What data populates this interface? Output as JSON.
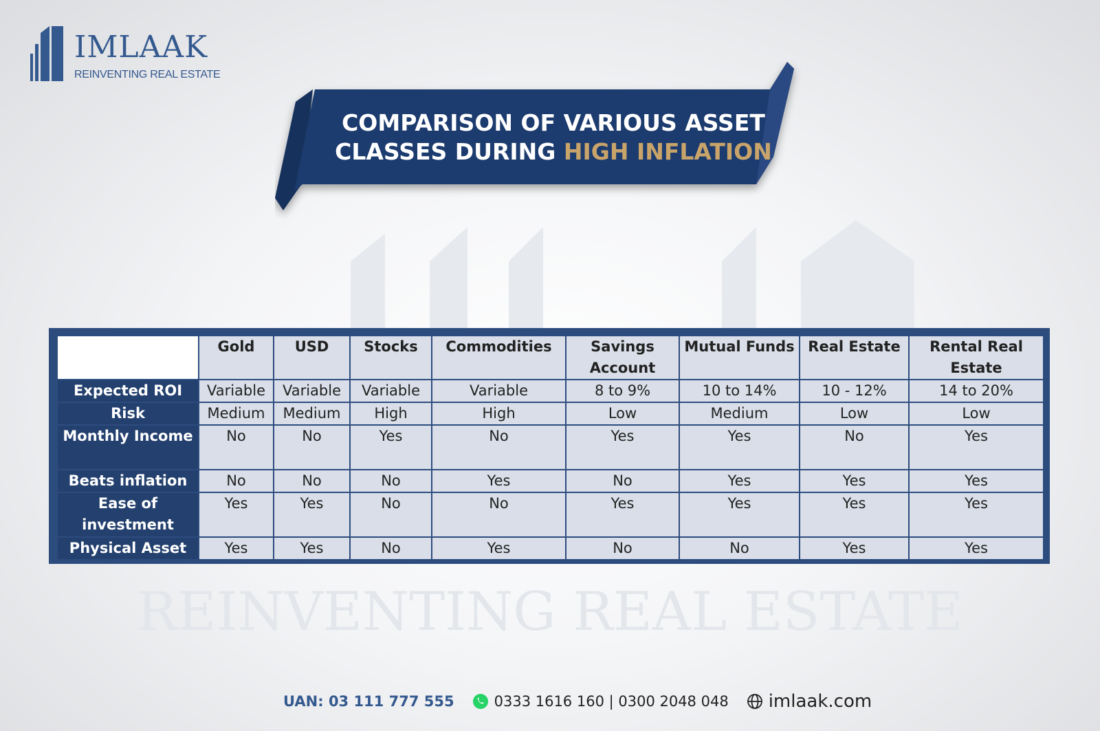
{
  "brand": {
    "name": "IMLAAK",
    "tagline": "REINVENTING REAL ESTATE",
    "color": "#34598f"
  },
  "banner": {
    "line1": "COMPARISON OF VARIOUS ASSET",
    "line2_prefix": "CLASSES DURING ",
    "line2_highlight": "HIGH INFLATION",
    "ribbon_color": "#1f3b6e",
    "highlight_color": "#c9a46a"
  },
  "watermark": {
    "text": "REINVENTING REAL ESTATE"
  },
  "table": {
    "columns": [
      "Gold",
      "USD",
      "Stocks",
      "Commodities",
      "Savings Account",
      "Mutual Funds",
      "Real Estate",
      "Rental Real Estate"
    ],
    "rows": [
      {
        "label": "Expected ROI",
        "values": [
          "Variable",
          "Variable",
          "Variable",
          "Variable",
          "8 to 9%",
          "10 to 14%",
          "10 - 12%",
          "14 to 20%"
        ]
      },
      {
        "label": "Risk",
        "values": [
          "Medium",
          "Medium",
          "High",
          "High",
          "Low",
          "Medium",
          "Low",
          "Low"
        ]
      },
      {
        "label": "Monthly Income",
        "values": [
          "No",
          "No",
          "Yes",
          "No",
          "Yes",
          "Yes",
          "No",
          "Yes"
        ]
      },
      {
        "label": "Beats inflation",
        "values": [
          "No",
          "No",
          "No",
          "Yes",
          "No",
          "Yes",
          "Yes",
          "Yes"
        ]
      },
      {
        "label": "Ease of investment",
        "values": [
          "Yes",
          "Yes",
          "No",
          "No",
          "Yes",
          "Yes",
          "Yes",
          "Yes"
        ]
      },
      {
        "label": "Physical Asset",
        "values": [
          "Yes",
          "Yes",
          "No",
          "Yes",
          "No",
          "No",
          "Yes",
          "Yes"
        ]
      }
    ]
  },
  "footer": {
    "uan": "UAN: 03 111 777 555",
    "phones": "0333 1616 160 | 0300 2048 048",
    "website": "imlaak.com",
    "icons": [
      "whatsapp-icon",
      "globe-icon"
    ]
  }
}
